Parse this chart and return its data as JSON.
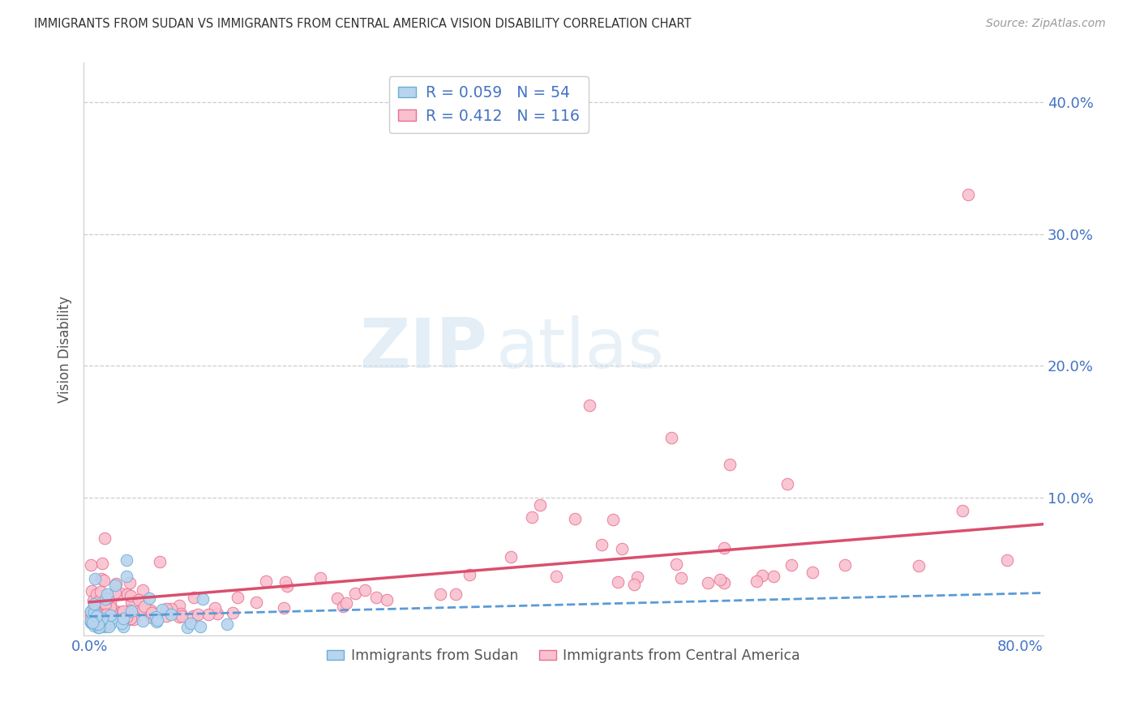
{
  "title": "IMMIGRANTS FROM SUDAN VS IMMIGRANTS FROM CENTRAL AMERICA VISION DISABILITY CORRELATION CHART",
  "source": "Source: ZipAtlas.com",
  "ylabel": "Vision Disability",
  "xlim": [
    -0.005,
    0.82
  ],
  "ylim": [
    -0.005,
    0.43
  ],
  "background_color": "#ffffff",
  "grid_color": "#cccccc",
  "sudan_color": "#b8d4ee",
  "sudan_edge_color": "#6aaed6",
  "central_america_color": "#f9c0cf",
  "central_america_edge_color": "#e87090",
  "sudan_R": 0.059,
  "sudan_N": 54,
  "central_america_R": 0.412,
  "central_america_N": 116,
  "legend_color": "#4472c4",
  "regression_sudan_color": "#5b9bd5",
  "regression_central_color": "#d94f6e",
  "ytick_positions": [
    0.1,
    0.2,
    0.3,
    0.4
  ],
  "ytick_labels": [
    "10.0%",
    "20.0%",
    "30.0%",
    "40.0%"
  ],
  "xtick_positions": [
    0.0,
    0.8
  ],
  "xtick_labels": [
    "0.0%",
    "80.0%"
  ],
  "watermark_zip": "ZIP",
  "watermark_atlas": "atlas",
  "marker_size": 110,
  "legend1_label1": "R = 0.059   N = 54",
  "legend1_label2": "R = 0.412   N = 116",
  "legend2_label1": "Immigrants from Sudan",
  "legend2_label2": "Immigrants from Central America"
}
